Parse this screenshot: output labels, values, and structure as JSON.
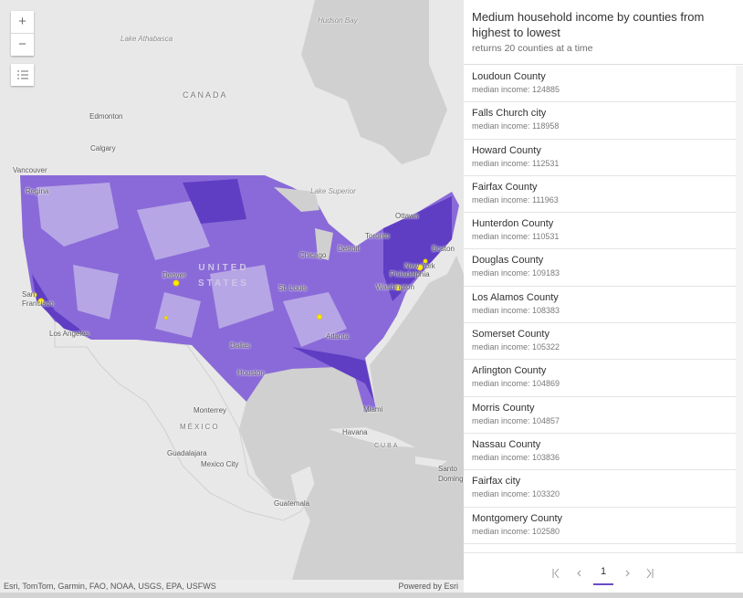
{
  "map": {
    "labels": [
      "Lake Athabasca",
      "Hudson Bay",
      "CANADA",
      "Edmonton",
      "Calgary",
      "Vancouver",
      "Regina",
      "Lake Superior",
      "Ottawa",
      "Toronto",
      "Detroit",
      "Chicago",
      "Boston",
      "New York",
      "Philadelphia",
      "Washington",
      "Denver",
      "UNITED STATES",
      "St. Louis",
      "San Francisco",
      "Los Angeles",
      "Dallas",
      "Atlanta",
      "Houston",
      "Miami",
      "Monterrey",
      "MÉXICO",
      "Havana",
      "CUBA",
      "Guadalajara",
      "Mexico City",
      "Guatemala",
      "Santo Domingo"
    ],
    "controls": {
      "zoom_in": "+",
      "zoom_out": "−"
    },
    "attribution": "Esri, TomTom, Garmin, FAO, NOAA, USGS, EPA, USFWS",
    "powered_by": "Powered by",
    "powered_by_link": "Esri"
  },
  "panel": {
    "title": "Medium household income by counties from highest to lowest",
    "subtitle": "returns 20 counties at a time",
    "items": [
      {
        "name": "Loudoun County",
        "detail": "median income: 124885"
      },
      {
        "name": "Falls Church city",
        "detail": "median income: 118958"
      },
      {
        "name": "Howard County",
        "detail": "median income: 112531"
      },
      {
        "name": "Fairfax County",
        "detail": "median income: 111963"
      },
      {
        "name": "Hunterdon County",
        "detail": "median income: 110531"
      },
      {
        "name": "Douglas County",
        "detail": "median income: 109183"
      },
      {
        "name": "Los Alamos County",
        "detail": "median income: 108383"
      },
      {
        "name": "Somerset County",
        "detail": "median income: 105322"
      },
      {
        "name": "Arlington County",
        "detail": "median income: 104869"
      },
      {
        "name": "Morris County",
        "detail": "median income: 104857"
      },
      {
        "name": "Nassau County",
        "detail": "median income: 103836"
      },
      {
        "name": "Fairfax city",
        "detail": "median income: 103320"
      },
      {
        "name": "Montgomery County",
        "detail": "median income: 102580"
      }
    ],
    "page": "1"
  }
}
